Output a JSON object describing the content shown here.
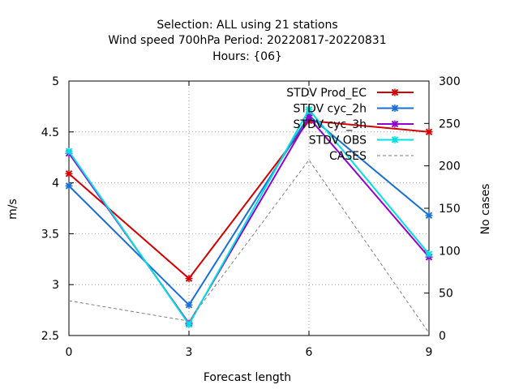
{
  "chart_data": {
    "type": "line",
    "title_lines": [
      "Selection: ALL using    21 stations",
      "Wind speed 700hPa   Period: 20220817-20220831",
      "Hours: {06}"
    ],
    "xlabel": "Forecast length",
    "ylabel": "m/s",
    "y2label": "No cases",
    "x": [
      0,
      3,
      6,
      9
    ],
    "xlim": [
      0,
      9
    ],
    "ylim": [
      2.5,
      5
    ],
    "y2lim": [
      0,
      300
    ],
    "xticks": [
      "0",
      "3",
      "6",
      "9"
    ],
    "yticks": [
      "2.5",
      "3",
      "3.5",
      "4",
      "4.5",
      "5"
    ],
    "y2ticks": [
      "0",
      "50",
      "100",
      "150",
      "200",
      "250",
      "300"
    ],
    "grid": true,
    "legend_position": "top-right",
    "series": [
      {
        "name": "STDV Prod_EC",
        "color": "#d40000",
        "axis": "y1",
        "values": [
          4.09,
          3.06,
          4.61,
          4.5
        ]
      },
      {
        "name": "STDV cyc_2h",
        "color": "#1a6fd6",
        "axis": "y1",
        "values": [
          3.97,
          2.8,
          4.66,
          3.68
        ]
      },
      {
        "name": "STDV cyc_3h",
        "color": "#9400d3",
        "axis": "y1",
        "values": [
          4.29,
          2.62,
          4.64,
          3.27
        ]
      },
      {
        "name": "STDV OBS",
        "color": "#00e0e0",
        "axis": "y1",
        "values": [
          4.31,
          2.61,
          4.72,
          3.3
        ]
      },
      {
        "name": "CASES",
        "color": "#808080",
        "axis": "y2",
        "dashed": true,
        "values": [
          41,
          17,
          207,
          3
        ]
      }
    ]
  }
}
